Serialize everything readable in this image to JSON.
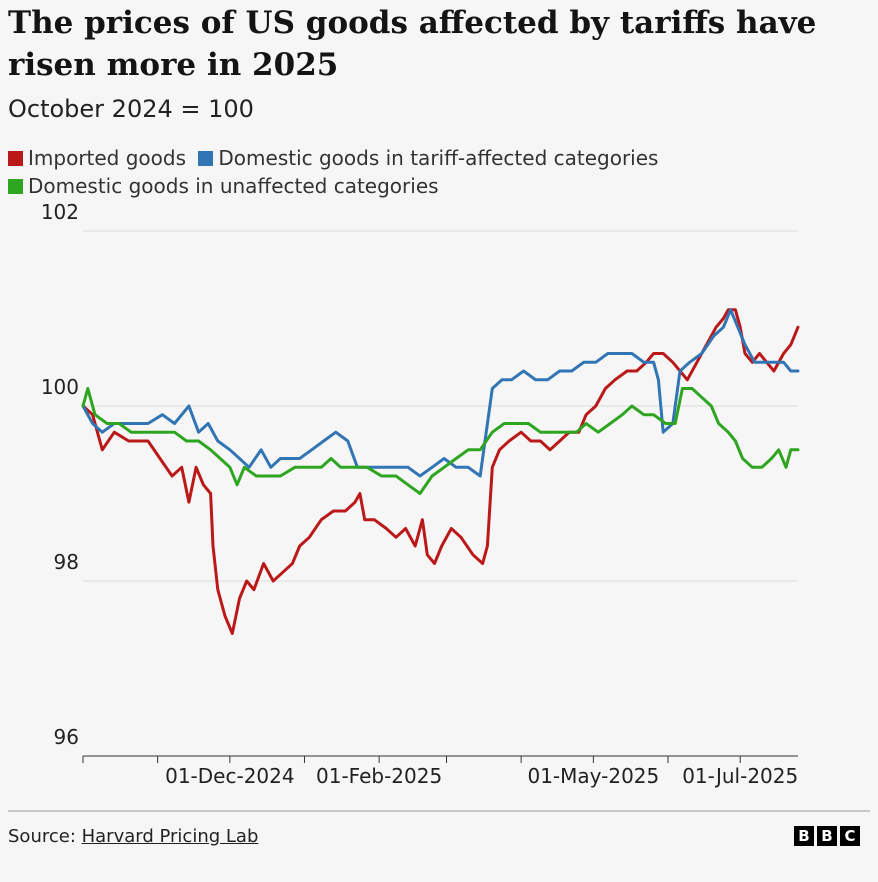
{
  "title": "The prices of US goods affected by tariffs have risen more in 2025",
  "subtitle": "October 2024 = 100",
  "legend": [
    {
      "label": "Imported goods",
      "color": "#bb1919"
    },
    {
      "label": "Domestic goods in tariff-affected categories",
      "color": "#3275b5"
    },
    {
      "label": "Domestic goods in unaffected categories",
      "color": "#2ea521"
    }
  ],
  "source": {
    "prefix": "Source: ",
    "link": "Harvard Pricing Lab"
  },
  "logo": [
    "B",
    "B",
    "C"
  ],
  "chart_data": {
    "type": "line",
    "ylim": [
      96,
      102
    ],
    "yticks": [
      96,
      98,
      100,
      102
    ],
    "xlim": [
      "2024-10-01",
      "2025-07-25"
    ],
    "xticks": [
      {
        "date": "2024-12-01",
        "label": "01-Dec-2024"
      },
      {
        "date": "2025-02-01",
        "label": "01-Feb-2025"
      },
      {
        "date": "2025-05-01",
        "label": "01-May-2025"
      },
      {
        "date": "2025-07-01",
        "label": "01-Jul-2025"
      }
    ],
    "grid": true,
    "series": [
      {
        "name": "Imported goods",
        "color": "#bb1919",
        "points": [
          [
            "2024-10-01",
            100.0
          ],
          [
            "2024-10-05",
            99.9
          ],
          [
            "2024-10-09",
            99.5
          ],
          [
            "2024-10-14",
            99.7
          ],
          [
            "2024-10-20",
            99.6
          ],
          [
            "2024-10-28",
            99.6
          ],
          [
            "2024-11-02",
            99.4
          ],
          [
            "2024-11-07",
            99.2
          ],
          [
            "2024-11-11",
            99.3
          ],
          [
            "2024-11-14",
            98.9
          ],
          [
            "2024-11-17",
            99.3
          ],
          [
            "2024-11-20",
            99.1
          ],
          [
            "2024-11-23",
            99.0
          ],
          [
            "2024-11-24",
            98.4
          ],
          [
            "2024-11-26",
            97.9
          ],
          [
            "2024-11-29",
            97.6
          ],
          [
            "2024-12-02",
            97.4
          ],
          [
            "2024-12-05",
            97.8
          ],
          [
            "2024-12-08",
            98.0
          ],
          [
            "2024-12-11",
            97.9
          ],
          [
            "2024-12-15",
            98.2
          ],
          [
            "2024-12-19",
            98.0
          ],
          [
            "2024-12-23",
            98.1
          ],
          [
            "2024-12-27",
            98.2
          ],
          [
            "2024-12-30",
            98.4
          ],
          [
            "2025-01-03",
            98.5
          ],
          [
            "2025-01-08",
            98.7
          ],
          [
            "2025-01-13",
            98.8
          ],
          [
            "2025-01-18",
            98.8
          ],
          [
            "2025-01-22",
            98.9
          ],
          [
            "2025-01-24",
            99.0
          ],
          [
            "2025-01-26",
            98.7
          ],
          [
            "2025-01-30",
            98.7
          ],
          [
            "2025-02-04",
            98.6
          ],
          [
            "2025-02-08",
            98.5
          ],
          [
            "2025-02-12",
            98.6
          ],
          [
            "2025-02-16",
            98.4
          ],
          [
            "2025-02-19",
            98.7
          ],
          [
            "2025-02-21",
            98.3
          ],
          [
            "2025-02-24",
            98.2
          ],
          [
            "2025-02-27",
            98.4
          ],
          [
            "2025-03-03",
            98.6
          ],
          [
            "2025-03-07",
            98.5
          ],
          [
            "2025-03-12",
            98.3
          ],
          [
            "2025-03-16",
            98.2
          ],
          [
            "2025-03-18",
            98.4
          ],
          [
            "2025-03-20",
            99.3
          ],
          [
            "2025-03-23",
            99.5
          ],
          [
            "2025-03-27",
            99.6
          ],
          [
            "2025-04-01",
            99.7
          ],
          [
            "2025-04-05",
            99.6
          ],
          [
            "2025-04-09",
            99.6
          ],
          [
            "2025-04-13",
            99.5
          ],
          [
            "2025-04-17",
            99.6
          ],
          [
            "2025-04-21",
            99.7
          ],
          [
            "2025-04-25",
            99.7
          ],
          [
            "2025-04-28",
            99.9
          ],
          [
            "2025-05-02",
            100.0
          ],
          [
            "2025-05-06",
            100.2
          ],
          [
            "2025-05-10",
            100.3
          ],
          [
            "2025-05-15",
            100.4
          ],
          [
            "2025-05-19",
            100.4
          ],
          [
            "2025-05-23",
            100.5
          ],
          [
            "2025-05-26",
            100.6
          ],
          [
            "2025-05-30",
            100.6
          ],
          [
            "2025-06-03",
            100.5
          ],
          [
            "2025-06-06",
            100.4
          ],
          [
            "2025-06-09",
            100.3
          ],
          [
            "2025-06-13",
            100.5
          ],
          [
            "2025-06-17",
            100.7
          ],
          [
            "2025-06-21",
            100.9
          ],
          [
            "2025-06-24",
            101.0
          ],
          [
            "2025-06-26",
            101.1
          ],
          [
            "2025-06-29",
            101.1
          ],
          [
            "2025-07-01",
            100.9
          ],
          [
            "2025-07-03",
            100.6
          ],
          [
            "2025-07-06",
            100.5
          ],
          [
            "2025-07-09",
            100.6
          ],
          [
            "2025-07-12",
            100.5
          ],
          [
            "2025-07-15",
            100.4
          ],
          [
            "2025-07-19",
            100.6
          ],
          [
            "2025-07-22",
            100.7
          ],
          [
            "2025-07-25",
            100.9
          ]
        ]
      },
      {
        "name": "Domestic goods in tariff-affected categories",
        "color": "#3275b5",
        "points": [
          [
            "2024-10-01",
            100.0
          ],
          [
            "2024-10-05",
            99.8
          ],
          [
            "2024-10-09",
            99.7
          ],
          [
            "2024-10-14",
            99.8
          ],
          [
            "2024-10-20",
            99.8
          ],
          [
            "2024-10-28",
            99.8
          ],
          [
            "2024-11-03",
            99.9
          ],
          [
            "2024-11-08",
            99.8
          ],
          [
            "2024-11-14",
            100.0
          ],
          [
            "2024-11-18",
            99.7
          ],
          [
            "2024-11-22",
            99.8
          ],
          [
            "2024-11-26",
            99.6
          ],
          [
            "2024-12-01",
            99.5
          ],
          [
            "2024-12-05",
            99.4
          ],
          [
            "2024-12-09",
            99.3
          ],
          [
            "2024-12-14",
            99.5
          ],
          [
            "2024-12-18",
            99.3
          ],
          [
            "2024-12-22",
            99.4
          ],
          [
            "2024-12-26",
            99.4
          ],
          [
            "2024-12-30",
            99.4
          ],
          [
            "2025-01-04",
            99.5
          ],
          [
            "2025-01-09",
            99.6
          ],
          [
            "2025-01-14",
            99.7
          ],
          [
            "2025-01-19",
            99.6
          ],
          [
            "2025-01-23",
            99.3
          ],
          [
            "2025-01-28",
            99.3
          ],
          [
            "2025-02-03",
            99.3
          ],
          [
            "2025-02-08",
            99.3
          ],
          [
            "2025-02-13",
            99.3
          ],
          [
            "2025-02-18",
            99.2
          ],
          [
            "2025-02-23",
            99.3
          ],
          [
            "2025-02-28",
            99.4
          ],
          [
            "2025-03-05",
            99.3
          ],
          [
            "2025-03-10",
            99.3
          ],
          [
            "2025-03-15",
            99.2
          ],
          [
            "2025-03-17",
            99.6
          ],
          [
            "2025-03-20",
            100.2
          ],
          [
            "2025-03-24",
            100.3
          ],
          [
            "2025-03-28",
            100.3
          ],
          [
            "2025-04-02",
            100.4
          ],
          [
            "2025-04-07",
            100.3
          ],
          [
            "2025-04-12",
            100.3
          ],
          [
            "2025-04-17",
            100.4
          ],
          [
            "2025-04-22",
            100.4
          ],
          [
            "2025-04-27",
            100.5
          ],
          [
            "2025-05-02",
            100.5
          ],
          [
            "2025-05-07",
            100.6
          ],
          [
            "2025-05-12",
            100.6
          ],
          [
            "2025-05-17",
            100.6
          ],
          [
            "2025-05-22",
            100.5
          ],
          [
            "2025-05-26",
            100.5
          ],
          [
            "2025-05-28",
            100.3
          ],
          [
            "2025-05-30",
            99.7
          ],
          [
            "2025-06-03",
            99.8
          ],
          [
            "2025-06-06",
            100.4
          ],
          [
            "2025-06-10",
            100.5
          ],
          [
            "2025-06-15",
            100.6
          ],
          [
            "2025-06-20",
            100.8
          ],
          [
            "2025-06-24",
            100.9
          ],
          [
            "2025-06-27",
            101.1
          ],
          [
            "2025-06-30",
            100.9
          ],
          [
            "2025-07-03",
            100.7
          ],
          [
            "2025-07-07",
            100.5
          ],
          [
            "2025-07-11",
            100.5
          ],
          [
            "2025-07-15",
            100.5
          ],
          [
            "2025-07-19",
            100.5
          ],
          [
            "2025-07-22",
            100.4
          ],
          [
            "2025-07-25",
            100.4
          ]
        ]
      },
      {
        "name": "Domestic goods in unaffected categories",
        "color": "#2ea521",
        "points": [
          [
            "2024-10-01",
            100.0
          ],
          [
            "2024-10-03",
            100.2
          ],
          [
            "2024-10-06",
            99.9
          ],
          [
            "2024-10-11",
            99.8
          ],
          [
            "2024-10-16",
            99.8
          ],
          [
            "2024-10-21",
            99.7
          ],
          [
            "2024-10-27",
            99.7
          ],
          [
            "2024-11-02",
            99.7
          ],
          [
            "2024-11-08",
            99.7
          ],
          [
            "2024-11-13",
            99.6
          ],
          [
            "2024-11-18",
            99.6
          ],
          [
            "2024-11-23",
            99.5
          ],
          [
            "2024-11-27",
            99.4
          ],
          [
            "2024-12-01",
            99.3
          ],
          [
            "2024-12-04",
            99.1
          ],
          [
            "2024-12-07",
            99.3
          ],
          [
            "2024-12-12",
            99.2
          ],
          [
            "2024-12-17",
            99.2
          ],
          [
            "2024-12-22",
            99.2
          ],
          [
            "2024-12-28",
            99.3
          ],
          [
            "2025-01-03",
            99.3
          ],
          [
            "2025-01-08",
            99.3
          ],
          [
            "2025-01-12",
            99.4
          ],
          [
            "2025-01-16",
            99.3
          ],
          [
            "2025-01-21",
            99.3
          ],
          [
            "2025-01-27",
            99.3
          ],
          [
            "2025-02-02",
            99.2
          ],
          [
            "2025-02-08",
            99.2
          ],
          [
            "2025-02-13",
            99.1
          ],
          [
            "2025-02-18",
            99.0
          ],
          [
            "2025-02-23",
            99.2
          ],
          [
            "2025-02-28",
            99.3
          ],
          [
            "2025-03-05",
            99.4
          ],
          [
            "2025-03-10",
            99.5
          ],
          [
            "2025-03-15",
            99.5
          ],
          [
            "2025-03-20",
            99.7
          ],
          [
            "2025-03-25",
            99.8
          ],
          [
            "2025-03-30",
            99.8
          ],
          [
            "2025-04-04",
            99.8
          ],
          [
            "2025-04-09",
            99.7
          ],
          [
            "2025-04-14",
            99.7
          ],
          [
            "2025-04-19",
            99.7
          ],
          [
            "2025-04-24",
            99.7
          ],
          [
            "2025-04-28",
            99.8
          ],
          [
            "2025-05-03",
            99.7
          ],
          [
            "2025-05-08",
            99.8
          ],
          [
            "2025-05-13",
            99.9
          ],
          [
            "2025-05-17",
            100.0
          ],
          [
            "2025-05-22",
            99.9
          ],
          [
            "2025-05-26",
            99.9
          ],
          [
            "2025-05-31",
            99.8
          ],
          [
            "2025-06-04",
            99.8
          ],
          [
            "2025-06-07",
            100.2
          ],
          [
            "2025-06-11",
            100.2
          ],
          [
            "2025-06-15",
            100.1
          ],
          [
            "2025-06-19",
            100.0
          ],
          [
            "2025-06-22",
            99.8
          ],
          [
            "2025-06-26",
            99.7
          ],
          [
            "2025-06-29",
            99.6
          ],
          [
            "2025-07-02",
            99.4
          ],
          [
            "2025-07-06",
            99.3
          ],
          [
            "2025-07-10",
            99.3
          ],
          [
            "2025-07-14",
            99.4
          ],
          [
            "2025-07-17",
            99.5
          ],
          [
            "2025-07-20",
            99.3
          ],
          [
            "2025-07-22",
            99.5
          ],
          [
            "2025-07-25",
            99.5
          ]
        ]
      }
    ]
  }
}
